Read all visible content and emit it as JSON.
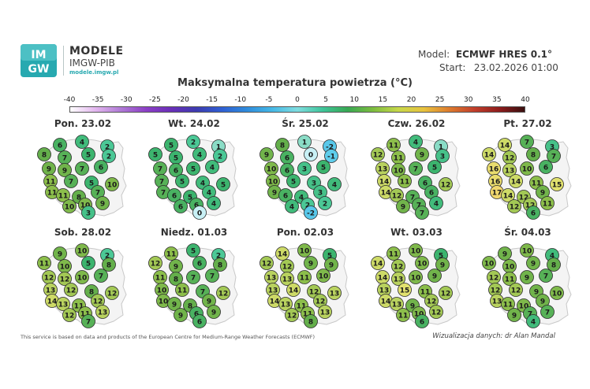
{
  "header": {
    "brand_line1": "MODELE",
    "brand_line2": "IMGW-PIB",
    "brand_url": "modele.imgw.pl",
    "logo_text_top": "IM",
    "logo_text_bottom": "GW",
    "model_label": "Model:",
    "model_value": "ECMWF HRES 0.1°",
    "start_label": "Start:",
    "start_value": "23.02.2026 01:00"
  },
  "title": "Maksymalna temperatura powietrza (°C)",
  "scale": {
    "ticks": [
      "-40",
      "-35",
      "-30",
      "-25",
      "-20",
      "-15",
      "-10",
      "-5",
      "0",
      "5",
      "10",
      "15",
      "20",
      "25",
      "30",
      "35",
      "40"
    ],
    "colors": [
      "#ffffff",
      "#e3b7ef",
      "#b07ad6",
      "#8c3fc6",
      "#6a2fb8",
      "#3d3bb0",
      "#2f5fd3",
      "#2f8cdc",
      "#45b8e6",
      "#7fdde0",
      "#3fc59a",
      "#38a852",
      "#7dbd3f",
      "#c7d84a",
      "#e8c33e",
      "#de7d2e",
      "#c23f2b",
      "#8e1c1c",
      "#3a1010"
    ]
  },
  "maps": [
    {
      "label": "Pon. 23.02",
      "values": [
        6,
        4,
        2,
        8,
        7,
        5,
        2,
        9,
        9,
        7,
        6,
        11,
        7,
        5,
        11,
        11,
        8,
        7,
        10,
        10,
        9,
        3,
        10
      ]
    },
    {
      "label": "Wt. 24.02",
      "values": [
        5,
        2,
        1,
        5,
        5,
        4,
        2,
        7,
        6,
        5,
        4,
        7,
        5,
        4,
        7,
        6,
        5,
        4,
        6,
        6,
        4,
        0,
        5
      ]
    },
    {
      "label": "Śr. 25.02",
      "values": [
        8,
        1,
        -2,
        9,
        6,
        0,
        -1,
        10,
        6,
        3,
        5,
        10,
        5,
        3,
        9,
        6,
        4,
        3,
        4,
        2,
        2,
        -2,
        4
      ]
    },
    {
      "label": "Czw. 26.02",
      "values": [
        11,
        4,
        1,
        12,
        11,
        9,
        3,
        13,
        10,
        7,
        5,
        14,
        11,
        6,
        14,
        12,
        7,
        6,
        9,
        7,
        4,
        7,
        12
      ]
    },
    {
      "label": "Pt. 27.02",
      "values": [
        14,
        7,
        3,
        14,
        12,
        8,
        7,
        16,
        13,
        10,
        6,
        16,
        14,
        11,
        17,
        14,
        12,
        9,
        12,
        12,
        11,
        6,
        15
      ]
    },
    {
      "label": "Sob. 28.02",
      "values": [
        9,
        10,
        2,
        11,
        10,
        5,
        8,
        12,
        12,
        10,
        7,
        13,
        12,
        8,
        14,
        13,
        11,
        12,
        12,
        11,
        13,
        7,
        12
      ]
    },
    {
      "label": "Niedz. 01.03",
      "values": [
        11,
        5,
        2,
        12,
        9,
        6,
        8,
        11,
        8,
        7,
        7,
        10,
        11,
        7,
        10,
        9,
        8,
        9,
        9,
        6,
        9,
        6,
        12
      ]
    },
    {
      "label": "Pon. 02.03",
      "values": [
        14,
        10,
        5,
        12,
        12,
        9,
        9,
        13,
        13,
        11,
        10,
        13,
        14,
        12,
        14,
        13,
        11,
        12,
        12,
        11,
        13,
        8,
        13
      ]
    },
    {
      "label": "Wt. 03.03",
      "values": [
        11,
        10,
        5,
        14,
        12,
        10,
        9,
        14,
        13,
        10,
        9,
        13,
        15,
        11,
        14,
        13,
        9,
        12,
        11,
        10,
        12,
        6,
        12
      ]
    },
    {
      "label": "Śr. 04.03",
      "values": [
        9,
        10,
        4,
        10,
        10,
        9,
        8,
        12,
        11,
        9,
        7,
        12,
        12,
        9,
        13,
        11,
        10,
        9,
        9,
        7,
        7,
        4,
        10
      ]
    }
  ],
  "footer": {
    "left": "This service is based on data and products of the European Centre for Medium-Range Weather Forecasts (ECMWF)",
    "right": "Wizualizacja danych: dr Alan Mandal"
  }
}
